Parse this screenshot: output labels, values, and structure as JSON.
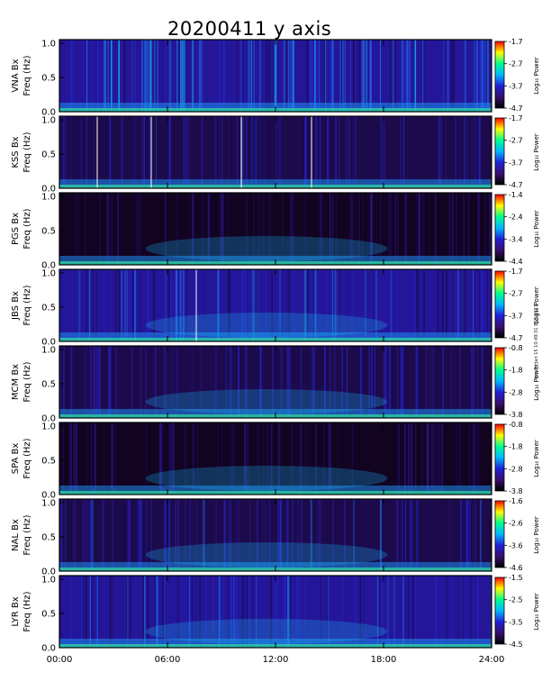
{
  "chart_data": {
    "type": "heatmap",
    "title": "20200411  y  axis",
    "xlabel": "",
    "x_ticks": [
      "00:00",
      "06:00",
      "12:00",
      "18:00",
      "24:00"
    ],
    "xlim": [
      0,
      24
    ],
    "ylim": [
      0,
      1.0
    ],
    "y_ticks": [
      "0.0",
      "0.5",
      "1.0"
    ],
    "colorbar_label": "Log₁₀ Power",
    "colormap": [
      "#000000",
      "#3a0f6e",
      "#2020d8",
      "#00b8ff",
      "#00ff90",
      "#ffff00",
      "#ff0000"
    ],
    "side_note": "km Fri Jan 15 10:49:31 EST 2021",
    "panels": [
      {
        "station": "VNA Bx",
        "ylabel": "Freq (Hz)",
        "cbar_ticks": [
          "-1.7",
          "-2.7",
          "-3.7",
          "-4.7"
        ],
        "noise_level": 0.55,
        "gaps": []
      },
      {
        "station": "KSS Bx",
        "ylabel": "Freq (Hz)",
        "cbar_ticks": [
          "-1.7",
          "-2.7",
          "-3.7",
          "-4.7"
        ],
        "noise_level": 0.3,
        "gaps": [
          2.1,
          5.1,
          10.1,
          14.0
        ]
      },
      {
        "station": "PGS Bx",
        "ylabel": "Freq (Hz)",
        "cbar_ticks": [
          "-1.4",
          "-2.4",
          "-3.4",
          "-4.4"
        ],
        "noise_level": 0.12,
        "gaps": []
      },
      {
        "station": "JBS Bx",
        "ylabel": "Freq (Hz)",
        "cbar_ticks": [
          "-1.7",
          "-2.7",
          "-3.7",
          "-4.7"
        ],
        "noise_level": 0.38,
        "gaps": [
          7.6
        ]
      },
      {
        "station": "MCM Bx",
        "ylabel": "Freq (Hz)",
        "cbar_ticks": [
          "-0.8",
          "-1.8",
          "-2.8",
          "-3.8"
        ],
        "noise_level": 0.28,
        "gaps": []
      },
      {
        "station": "SPA Bx",
        "ylabel": "Freq (Hz)",
        "cbar_ticks": [
          "-0.8",
          "-1.8",
          "-2.8",
          "-3.8"
        ],
        "noise_level": 0.1,
        "gaps": []
      },
      {
        "station": "NAL Bx",
        "ylabel": "Freq (Hz)",
        "cbar_ticks": [
          "-1.6",
          "-2.6",
          "-3.6",
          "-4.6"
        ],
        "noise_level": 0.32,
        "gaps": []
      },
      {
        "station": "LYR Bx",
        "ylabel": "Freq (Hz)",
        "cbar_ticks": [
          "-1.5",
          "-2.5",
          "-3.5",
          "-4.5"
        ],
        "noise_level": 0.36,
        "gaps": []
      }
    ]
  }
}
